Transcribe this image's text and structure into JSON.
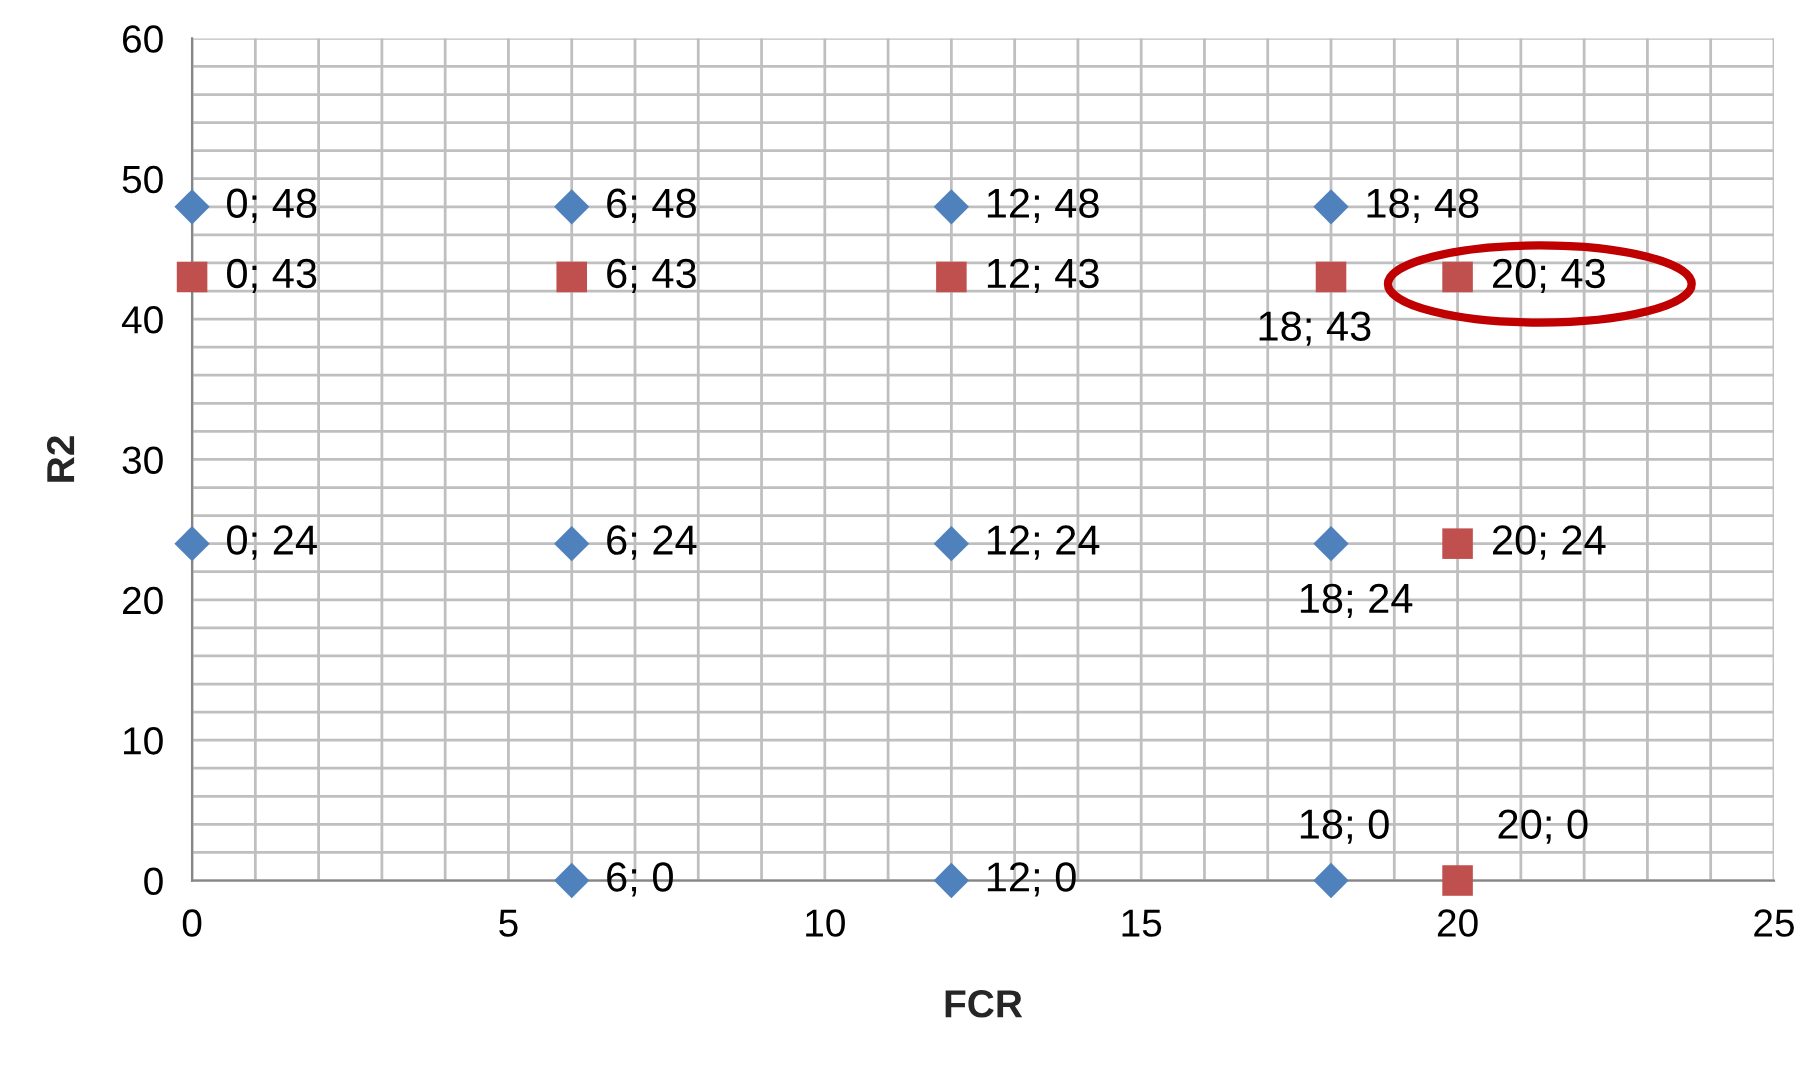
{
  "chart_data": {
    "type": "scatter",
    "xlabel": "FCR",
    "ylabel": "R2",
    "series": [
      {
        "color": "#4f81bd",
        "marker": "diamond",
        "x": [
          0,
          6,
          12,
          18,
          0,
          6,
          12,
          18,
          6,
          12,
          18
        ],
        "values": [
          48,
          48,
          48,
          48,
          24,
          24,
          24,
          24,
          0,
          0,
          0
        ],
        "value_labels": [
          "0; 48",
          "6; 48",
          "12; 48",
          "18; 48",
          "0; 24",
          "6; 24",
          "12; 24",
          "18; 24",
          "6; 0",
          "12; 0",
          "18; 0"
        ]
      },
      {
        "color": "#c0504d",
        "marker": "square",
        "x": [
          0,
          6,
          12,
          18,
          20,
          20,
          20
        ],
        "values": [
          43,
          43,
          43,
          43,
          43,
          24,
          0
        ],
        "value_labels": [
          "0; 43",
          "6; 43",
          "12; 43",
          "18; 43",
          "20; 43",
          "20; 24",
          "20; 0"
        ]
      }
    ],
    "xlim": [
      0,
      25
    ],
    "ylim": [
      0,
      60
    ],
    "xticks": [
      0,
      {
        "value": 1,
        "label": null
      },
      {
        "value": 2,
        "label": null
      },
      {
        "value": 3,
        "label": null
      },
      {
        "value": 4,
        "label": null
      },
      5,
      {
        "value": 6,
        "label": null
      },
      {
        "value": 7,
        "label": null
      },
      {
        "value": 8,
        "label": null
      },
      {
        "value": 9,
        "label": null
      },
      10,
      {
        "value": 11,
        "label": null
      },
      {
        "value": 12,
        "label": null
      },
      {
        "value": 13,
        "label": null
      },
      {
        "value": 14,
        "label": null
      },
      15,
      {
        "value": 16,
        "label": null
      },
      {
        "value": 17,
        "label": null
      },
      {
        "value": 18,
        "label": null
      },
      {
        "value": 19,
        "label": null
      },
      20,
      {
        "value": 21,
        "label": null
      },
      {
        "value": 22,
        "label": null
      },
      {
        "value": 23,
        "label": null
      },
      {
        "value": 24,
        "label": null
      },
      25
    ],
    "yticks": [
      0,
      {
        "value": 2,
        "label": null
      },
      {
        "value": 4,
        "label": null
      },
      {
        "value": 6,
        "label": null
      },
      {
        "value": 8,
        "label": null
      },
      10,
      {
        "value": 12,
        "label": null
      },
      {
        "value": 14,
        "label": null
      },
      {
        "value": 16,
        "label": null
      },
      {
        "value": 18,
        "label": null
      },
      20,
      {
        "value": 22,
        "label": null
      },
      {
        "value": 24,
        "label": null
      },
      {
        "value": 26,
        "label": null
      },
      {
        "value": 28,
        "label": null
      },
      30,
      {
        "value": 32,
        "label": null
      },
      {
        "value": 34,
        "label": null
      },
      {
        "value": 36,
        "label": null
      },
      {
        "value": 38,
        "label": null
      },
      40,
      {
        "value": 42,
        "label": null
      },
      {
        "value": 44,
        "label": null
      },
      {
        "value": 46,
        "label": null
      },
      {
        "value": 48,
        "label": null
      },
      50,
      {
        "value": 52,
        "label": null
      },
      {
        "value": 54,
        "label": null
      },
      {
        "value": 56,
        "label": null
      },
      {
        "value": 58,
        "label": null
      },
      60
    ],
    "grid": true
  }
}
